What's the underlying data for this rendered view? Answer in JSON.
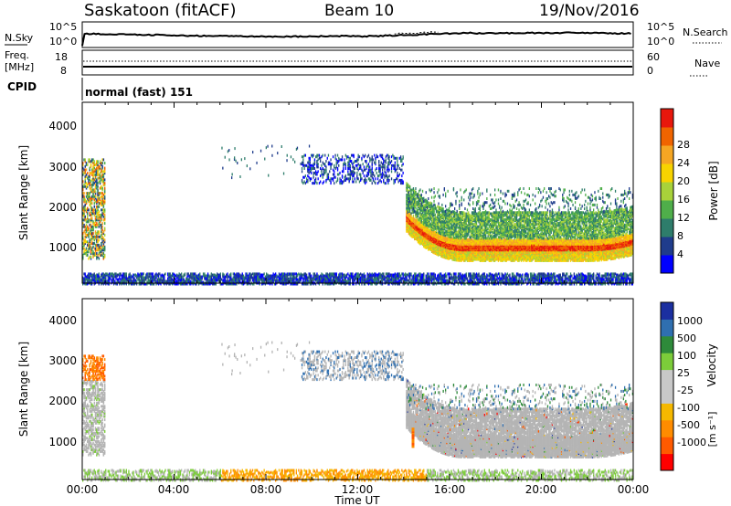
{
  "header": {
    "station": "Saskatoon (fitACF)",
    "beam": "Beam 10",
    "date": "19/Nov/2016"
  },
  "noise_panel": {
    "left_label": "N.Sky",
    "left_ticks": [
      "10^5",
      "10^0"
    ],
    "right_ticks": [
      "10^5",
      "10^0"
    ],
    "right_label": "N.Search"
  },
  "freq_panel": {
    "left_label_line1": "Freq.",
    "left_label_line2": "[MHz]",
    "left_ticks": [
      "18",
      "8"
    ],
    "right_ticks": [
      "60",
      "0"
    ],
    "right_label": "Nave"
  },
  "cpid": {
    "label": "CPID",
    "mode": "normal (fast) 151"
  },
  "x_axis": {
    "tick_labels": [
      "00:00",
      "04:00",
      "08:00",
      "12:00",
      "16:00",
      "20:00",
      "00:00"
    ],
    "label": "Time UT"
  },
  "power_panel": {
    "y_label": "Slant Range [km]",
    "y_ticks": [
      "1000",
      "2000",
      "3000",
      "4000"
    ],
    "colorbar_label": "Power [dB]",
    "colorbar_ticks": [
      "4",
      "8",
      "12",
      "16",
      "20",
      "24",
      "28"
    ]
  },
  "velocity_panel": {
    "y_label": "Slant Range [km]",
    "y_ticks": [
      "1000",
      "2000",
      "3000",
      "4000"
    ],
    "colorbar_label": "Velocity",
    "colorbar_unit": "[m s⁻¹]",
    "colorbar_ticks": [
      "1000",
      "500",
      "100",
      "25",
      "-25",
      "-100",
      "-500",
      "-1000"
    ]
  },
  "chart_data": {
    "type": "heatmap",
    "time_range_hours": [
      0,
      24
    ],
    "range_km": [
      180,
      4500
    ],
    "colors": {
      "power_scale": [
        "#0000ff",
        "#1f3c8c",
        "#2e7d6b",
        "#4fae4a",
        "#a8d23a",
        "#f7d300",
        "#f5a623",
        "#f06400",
        "#e8170c"
      ],
      "velocity_scale": [
        "#ff0000",
        "#ff5a00",
        "#ff8c00",
        "#f5b800",
        "#c8c8c8",
        "#c8c8c8",
        "#7ccc3a",
        "#2e8a3a",
        "#2f6fb0",
        "#1b2fa0"
      ],
      "ground_scatter": "#b4b4b4"
    },
    "power_regions": [
      {
        "t0": 14.1,
        "t1": 24.0,
        "r0": 800,
        "r1": 1400,
        "level": "high"
      },
      {
        "t0": 14.1,
        "t1": 24.0,
        "r0": 1300,
        "r1": 2000,
        "level": "mid"
      },
      {
        "t0": 0.0,
        "t1": 1.0,
        "r0": 800,
        "r1": 3200,
        "level": "mixed"
      },
      {
        "t0": 9.5,
        "t1": 14.0,
        "r0": 2600,
        "r1": 3300,
        "level": "low"
      },
      {
        "t0": 0.0,
        "t1": 24.0,
        "r0": 180,
        "r1": 450,
        "level": "low"
      }
    ],
    "velocity_regions": [
      {
        "t0": 14.1,
        "t1": 24.0,
        "r0": 800,
        "r1": 2000,
        "class": "ground"
      },
      {
        "t0": 0.0,
        "t1": 1.0,
        "r0": 800,
        "r1": 2600,
        "class": "ground"
      },
      {
        "t0": 6.0,
        "t1": 15.0,
        "r0": 180,
        "r1": 450,
        "class": "negative"
      },
      {
        "t0": 14.2,
        "t1": 14.6,
        "r0": 1000,
        "r1": 1400,
        "class": "negative"
      }
    ]
  }
}
